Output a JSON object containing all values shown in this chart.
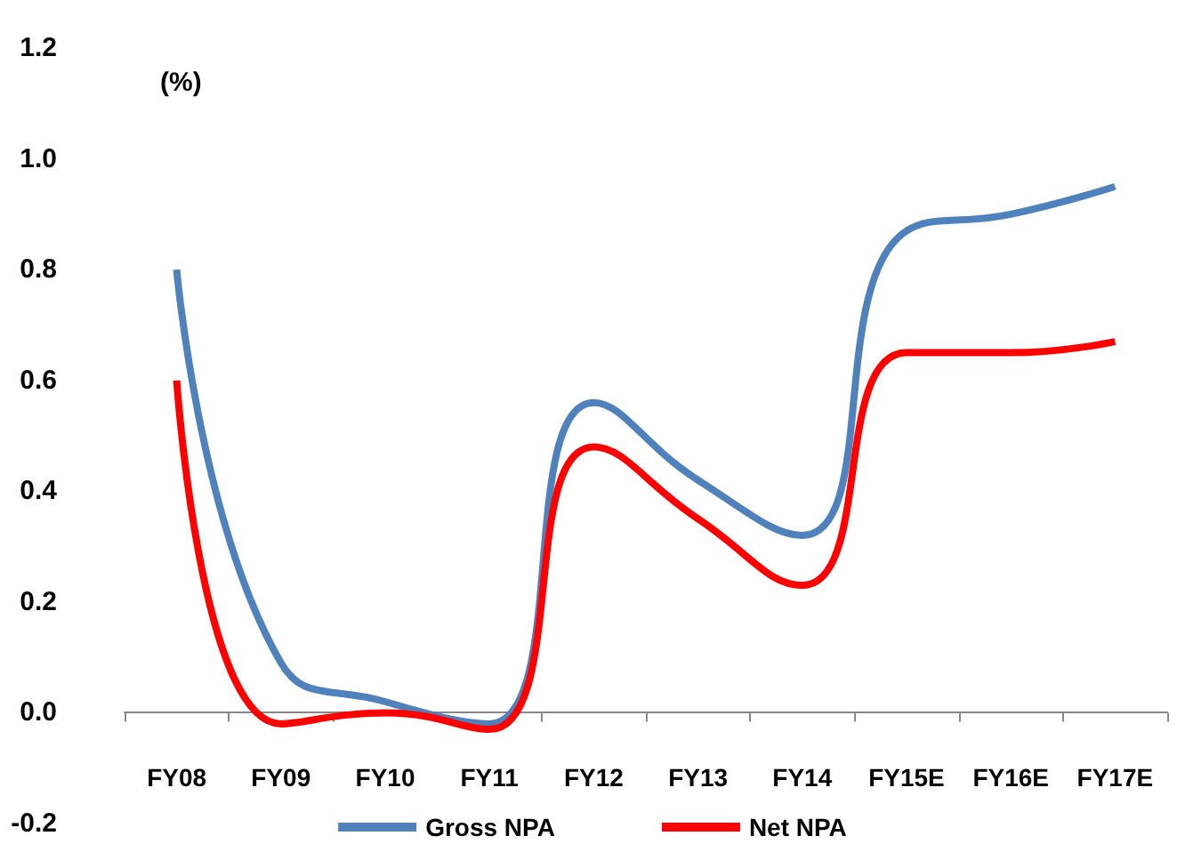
{
  "chart_data": {
    "type": "line",
    "ylabel": "(%)",
    "categories": [
      "FY08",
      "FY09",
      "FY10",
      "FY11",
      "FY12",
      "FY13",
      "FY14",
      "FY15E",
      "FY16E",
      "FY17E"
    ],
    "series": [
      {
        "name": "Gross NPA",
        "color": "#4f81bd",
        "values": [
          0.8,
          0.09,
          0.02,
          -0.02,
          0.56,
          0.42,
          0.32,
          0.87,
          0.9,
          0.95
        ]
      },
      {
        "name": "Net NPA",
        "color": "#ff0000",
        "values": [
          0.6,
          -0.02,
          0.0,
          -0.03,
          0.48,
          0.35,
          0.23,
          0.65,
          0.65,
          0.67
        ]
      }
    ],
    "ylim": [
      -0.2,
      1.2
    ],
    "yticks": [
      {
        "value": -0.2,
        "label": "-0.2"
      },
      {
        "value": 0,
        "label": "0.0"
      },
      {
        "value": 0.2,
        "label": "0.2"
      },
      {
        "value": 0.4,
        "label": "0.4"
      },
      {
        "value": 0.6,
        "label": "0.6"
      },
      {
        "value": 0.8,
        "label": "0.8"
      },
      {
        "value": 1,
        "label": "1.0"
      },
      {
        "value": 1.2,
        "label": "1.2"
      }
    ],
    "legend": "bottom",
    "marker": "none",
    "line_style": "solid"
  }
}
